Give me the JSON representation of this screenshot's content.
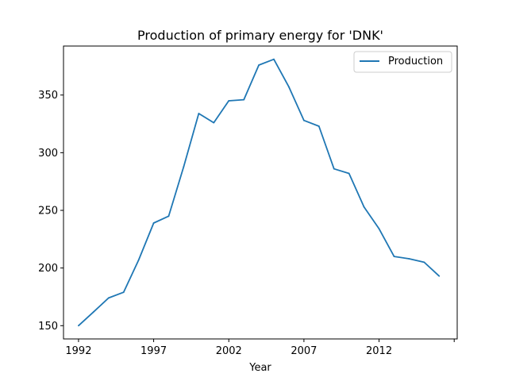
{
  "chart_data": {
    "type": "line",
    "title": "Production of primary energy for 'DNK'",
    "xlabel": "Year",
    "ylabel": "",
    "x": [
      1992,
      1993,
      1994,
      1995,
      1996,
      1997,
      1998,
      1999,
      2000,
      2001,
      2002,
      2003,
      2004,
      2005,
      2006,
      2007,
      2008,
      2009,
      2010,
      2011,
      2012,
      2013,
      2014,
      2015,
      2016
    ],
    "series": [
      {
        "name": "Production",
        "color": "#1f77b4",
        "values": [
          150,
          162,
          174,
          179,
          207,
          239,
          245,
          288,
          334,
          326,
          345,
          346,
          376,
          381,
          357,
          328,
          323,
          286,
          282,
          253,
          234,
          210,
          208,
          205,
          193
        ]
      }
    ],
    "xticks": [
      "1992",
      "1997",
      "2002",
      "2007",
      "2012",
      ""
    ],
    "xtick_values": [
      1992,
      1997,
      2002,
      2007,
      2012,
      2017
    ],
    "yticks": [
      "150",
      "200",
      "250",
      "300",
      "350"
    ],
    "ytick_values": [
      150,
      200,
      250,
      300,
      350
    ],
    "xlim": [
      1991,
      2017.2
    ],
    "ylim": [
      138.5,
      392.5
    ],
    "grid": false,
    "legend_position": "top-right"
  }
}
